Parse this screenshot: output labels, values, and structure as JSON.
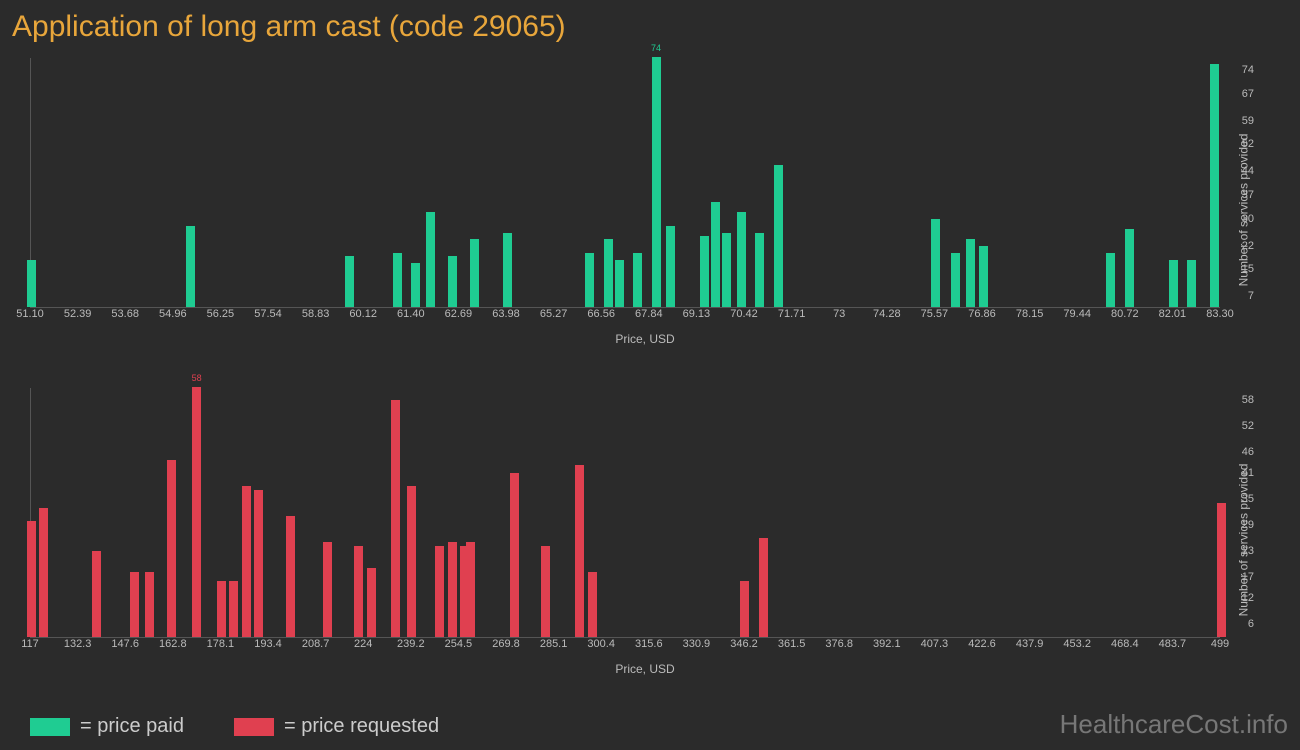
{
  "title": "Application of long arm cast (code 29065)",
  "watermark": "HealthcareCost.info",
  "colors": {
    "background": "#2b2b2b",
    "title": "#e8a63b",
    "green": "#1fcc92",
    "red": "#e04050",
    "axis_text": "#bbbbbb",
    "axis_line": "#555555"
  },
  "legend": {
    "paid": "= price paid",
    "requested": "= price requested"
  },
  "chart_top": {
    "type": "bar",
    "x_label": "Price, USD",
    "y_label": "Number of services provided",
    "xlim": [
      51.1,
      83.3
    ],
    "ylim": [
      0,
      74
    ],
    "x_ticks": [
      "51.10",
      "52.39",
      "53.68",
      "54.96",
      "56.25",
      "57.54",
      "58.83",
      "60.12",
      "61.40",
      "62.69",
      "63.98",
      "65.27",
      "66.56",
      "67.84",
      "69.13",
      "70.42",
      "71.71",
      "73",
      "74.28",
      "75.57",
      "76.86",
      "78.15",
      "79.44",
      "80.72",
      "82.01",
      "83.30"
    ],
    "y_ticks": [
      7,
      15,
      22,
      30,
      37,
      44,
      52,
      59,
      67,
      74
    ],
    "max_label": "74",
    "bar_color": "#1fcc92",
    "bars": [
      {
        "x": 51.1,
        "y": 14
      },
      {
        "x": 55.4,
        "y": 24
      },
      {
        "x": 59.7,
        "y": 15
      },
      {
        "x": 61.0,
        "y": 16
      },
      {
        "x": 61.5,
        "y": 13
      },
      {
        "x": 61.9,
        "y": 28
      },
      {
        "x": 62.5,
        "y": 15
      },
      {
        "x": 63.1,
        "y": 20
      },
      {
        "x": 63.98,
        "y": 22
      },
      {
        "x": 66.2,
        "y": 16
      },
      {
        "x": 66.7,
        "y": 20
      },
      {
        "x": 67.0,
        "y": 14
      },
      {
        "x": 67.5,
        "y": 16
      },
      {
        "x": 68.0,
        "y": 74,
        "top": true
      },
      {
        "x": 68.4,
        "y": 24
      },
      {
        "x": 69.3,
        "y": 21
      },
      {
        "x": 69.6,
        "y": 31
      },
      {
        "x": 69.9,
        "y": 22
      },
      {
        "x": 70.3,
        "y": 28
      },
      {
        "x": 70.8,
        "y": 22
      },
      {
        "x": 71.3,
        "y": 42
      },
      {
        "x": 75.57,
        "y": 26
      },
      {
        "x": 76.1,
        "y": 16
      },
      {
        "x": 76.5,
        "y": 20
      },
      {
        "x": 76.86,
        "y": 18
      },
      {
        "x": 80.3,
        "y": 16
      },
      {
        "x": 80.8,
        "y": 23
      },
      {
        "x": 82.01,
        "y": 14
      },
      {
        "x": 82.5,
        "y": 14
      },
      {
        "x": 83.1,
        "y": 72
      }
    ]
  },
  "chart_bottom": {
    "type": "bar",
    "x_label": "Price, USD",
    "y_label": "Number of services provided",
    "xlim": [
      117,
      499
    ],
    "ylim": [
      0,
      58
    ],
    "x_ticks": [
      "117",
      "132.3",
      "147.6",
      "162.8",
      "178.1",
      "193.4",
      "208.7",
      "224",
      "239.2",
      "254.5",
      "269.8",
      "285.1",
      "300.4",
      "315.6",
      "330.9",
      "346.2",
      "361.5",
      "376.8",
      "392.1",
      "407.3",
      "422.6",
      "437.9",
      "453.2",
      "468.4",
      "483.7",
      "499"
    ],
    "y_ticks": [
      6,
      12,
      17,
      23,
      29,
      35,
      41,
      46,
      52,
      58
    ],
    "max_label": "58",
    "bar_color": "#e04050",
    "bars": [
      {
        "x": 117,
        "y": 27
      },
      {
        "x": 121,
        "y": 30
      },
      {
        "x": 138,
        "y": 20
      },
      {
        "x": 150,
        "y": 15
      },
      {
        "x": 155,
        "y": 15
      },
      {
        "x": 162,
        "y": 41
      },
      {
        "x": 170,
        "y": 58,
        "top": true
      },
      {
        "x": 178,
        "y": 13
      },
      {
        "x": 182,
        "y": 13
      },
      {
        "x": 186,
        "y": 35
      },
      {
        "x": 190,
        "y": 34
      },
      {
        "x": 200,
        "y": 28
      },
      {
        "x": 212,
        "y": 22
      },
      {
        "x": 222,
        "y": 21
      },
      {
        "x": 226,
        "y": 16
      },
      {
        "x": 234,
        "y": 55
      },
      {
        "x": 239,
        "y": 35
      },
      {
        "x": 248,
        "y": 21
      },
      {
        "x": 252,
        "y": 22
      },
      {
        "x": 256,
        "y": 21
      },
      {
        "x": 258,
        "y": 22
      },
      {
        "x": 272,
        "y": 38
      },
      {
        "x": 282,
        "y": 21
      },
      {
        "x": 293,
        "y": 40
      },
      {
        "x": 297,
        "y": 15
      },
      {
        "x": 346,
        "y": 13
      },
      {
        "x": 352,
        "y": 23
      },
      {
        "x": 499,
        "y": 31
      }
    ]
  }
}
